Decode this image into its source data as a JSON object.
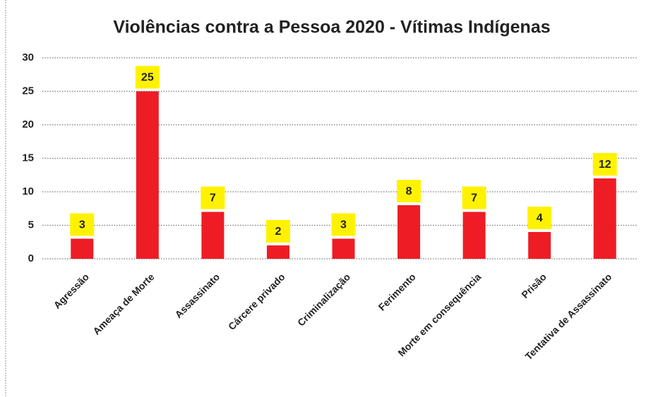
{
  "chart_data": {
    "type": "bar",
    "title": "Violências contra a Pessoa 2020 - Vítimas Indígenas",
    "categories": [
      "Agressão",
      "Ameaça de Morte",
      "Assassinato",
      "Cárcere privado",
      "Criminalização",
      "Ferimento",
      "Morte em consequência",
      "Prisão",
      "Tentativa de Assassinato"
    ],
    "values": [
      3,
      25,
      7,
      2,
      3,
      8,
      7,
      4,
      12
    ],
    "color": "#ee1c25",
    "label_color": "#fff200",
    "ylim": [
      0,
      30
    ],
    "yticks": [
      0,
      5,
      10,
      15,
      20,
      25,
      30
    ],
    "grid": true
  }
}
